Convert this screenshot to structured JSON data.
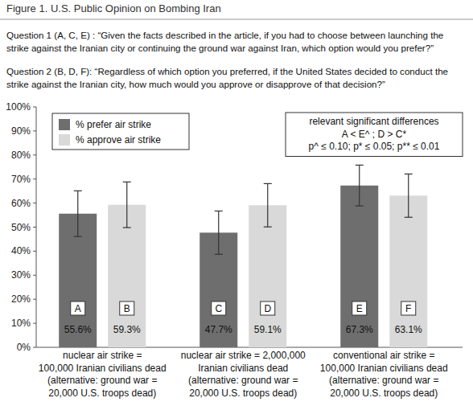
{
  "chart_data": {
    "type": "bar",
    "title": "Figure 1.  U.S. Public Opinion on Bombing Iran",
    "subtitle": [
      "Question 1 (A, C, E) : “Given the facts described in the article, if you had to choose between launching the",
      "strike against the Iranian city or continuing the ground war against Iran, which option would you prefer?”",
      "Question 2 (B, D, F): “Regardless of which option you preferred, if the United States decided to conduct the",
      "strike against the Iranian city, how much would you approve or disapprove of that decision?”"
    ],
    "annotation": {
      "title": "relevant significant differences",
      "lines": [
        "A < E^ ; D > C*",
        "p^ ≤ 0.10; p* ≤ 0.05; p** ≤ 0.01"
      ]
    },
    "categories": [
      [
        "nuclear air strike =",
        "100,000 Iranian civilians dead",
        "(alternative: ground war =",
        "20,000 U.S. troops dead)"
      ],
      [
        "nuclear air strike = 2,000,000",
        "Iranian civilians dead",
        "(alternative: ground war =",
        "20,000 U.S. troops dead)"
      ],
      [
        "conventional air strike =",
        "100,000 Iranian civilians dead",
        "(alternative: ground war =",
        "20,000 U.S. troops dead)"
      ]
    ],
    "series": [
      {
        "name": "% prefer air strike",
        "color": "#6e6e6e",
        "values": [
          55.6,
          47.7,
          67.3
        ],
        "value_labels": [
          "55.6%",
          "47.7%",
          "67.3%"
        ],
        "errors": [
          9.5,
          9,
          8.5
        ],
        "letters": [
          "A",
          "C",
          "E"
        ]
      },
      {
        "name": "% approve air strike",
        "color": "#d9d9d9",
        "values": [
          59.3,
          59.1,
          63.1
        ],
        "value_labels": [
          "59.3%",
          "59.1%",
          "63.1%"
        ],
        "errors": [
          9.5,
          9,
          9
        ],
        "letters": [
          "B",
          "D",
          "F"
        ]
      }
    ],
    "ylim": [
      0,
      100
    ],
    "yticks": [
      {
        "value": 0,
        "label": "0%"
      },
      {
        "value": 10,
        "label": "10%"
      },
      {
        "value": 20,
        "label": "20%"
      },
      {
        "value": 30,
        "label": "30%"
      },
      {
        "value": 40,
        "label": "40%"
      },
      {
        "value": 50,
        "label": "50%"
      },
      {
        "value": 60,
        "label": "60%"
      },
      {
        "value": 70,
        "label": "70%"
      },
      {
        "value": 80,
        "label": "80%"
      },
      {
        "value": 90,
        "label": "90%"
      },
      {
        "value": 100,
        "label": "100%"
      }
    ],
    "grid": false,
    "legend": "upper left",
    "data_labels": true
  }
}
